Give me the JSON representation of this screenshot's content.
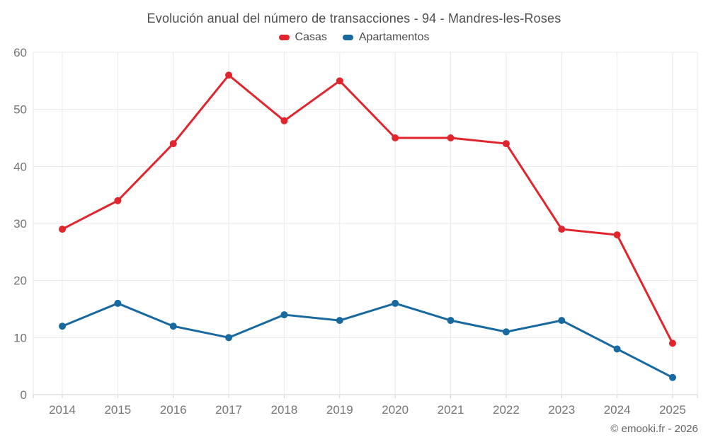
{
  "title": "Evolución anual del número de transacciones - 94 - Mandres-les-Roses",
  "footer": {
    "credit": "© emooki.fr - 2026"
  },
  "colors": {
    "casas": "#e0252d",
    "apartamentos": "#17699f",
    "grid": "#e9e9e9",
    "axis": "#cfcfcf",
    "tick_label": "#757575"
  },
  "chart_data": {
    "type": "line",
    "title": "Evolución anual del número de transacciones - 94 - Mandres-les-Roses",
    "categories": [
      "2014",
      "2015",
      "2016",
      "2017",
      "2018",
      "2019",
      "2020",
      "2021",
      "2022",
      "2023",
      "2024",
      "2025"
    ],
    "series": [
      {
        "name": "Casas",
        "color": "#e0252d",
        "values": [
          29,
          34,
          44,
          56,
          48,
          55,
          45,
          45,
          44,
          29,
          28,
          9
        ]
      },
      {
        "name": "Apartamentos",
        "color": "#17699f",
        "values": [
          12,
          16,
          12,
          10,
          14,
          13,
          16,
          13,
          11,
          13,
          8,
          3
        ]
      }
    ],
    "xlabel": "",
    "ylabel": "",
    "ylim": [
      0,
      60
    ],
    "yticks": [
      0,
      10,
      20,
      30,
      40,
      50,
      60
    ],
    "grid": true,
    "legend_position": "top"
  }
}
